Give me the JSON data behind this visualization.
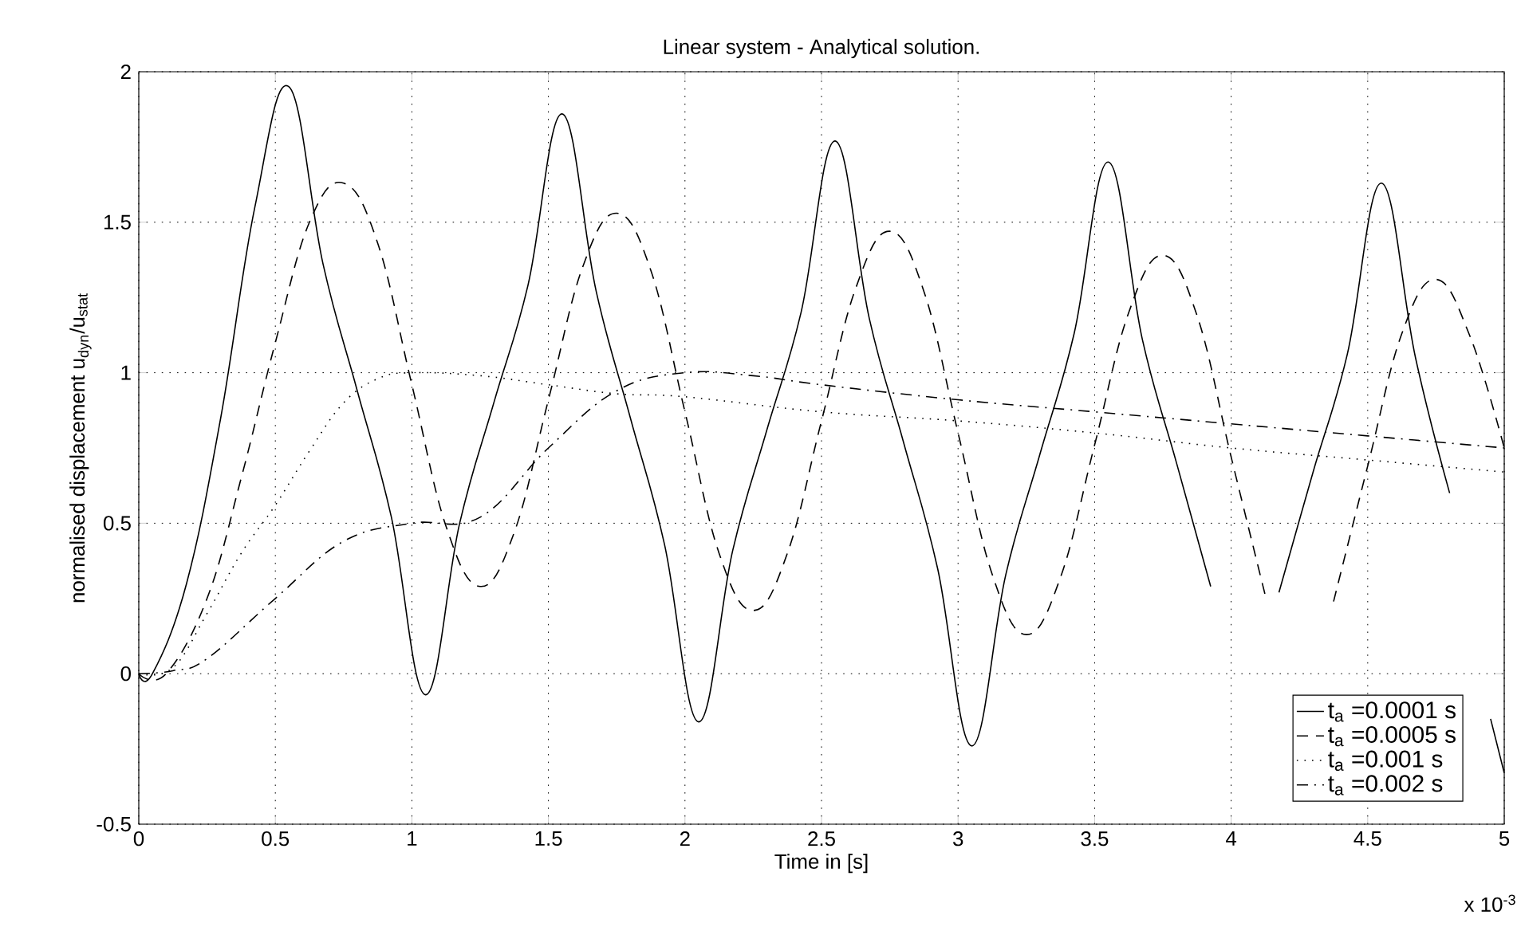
{
  "chart_data": {
    "type": "line",
    "title": "Linear system - Analytical solution.",
    "xlabel": "Time in [s]",
    "ylabel": "normalised displacement   u$_{dyn}$/u$_{stat}$",
    "annotations": [
      "x 10$^{-3}$"
    ],
    "xlim": [
      0,
      5
    ],
    "ylim": [
      -0.5,
      2
    ],
    "xticks": [
      0,
      0.5,
      1,
      1.5,
      2,
      2.5,
      3,
      3.5,
      4,
      4.5,
      5
    ],
    "yticks": [
      -0.5,
      0,
      0.5,
      1,
      1.5,
      2
    ],
    "grid": true,
    "legend": "bottom right",
    "series": [
      {
        "name": "t$_{a}$ =0.0001 s",
        "color": "#000000",
        "line_style": "solid",
        "x": [
          0,
          0.05,
          0.175,
          0.3,
          0.425,
          0.55,
          0.675,
          0.8,
          0.925,
          1.05,
          1.175,
          1.3,
          1.425,
          1.55,
          1.675,
          1.8,
          1.925,
          2.05,
          2.175,
          2.3,
          2.425,
          2.55,
          2.675,
          2.8,
          2.925,
          3.05,
          3.175,
          3.3,
          3.425,
          3.55,
          3.675,
          3.8,
          3.925,
          4.05,
          4.175,
          4.3,
          4.425,
          4.55,
          4.675,
          4.8,
          4.925,
          4.95,
          5.0
        ],
        "values": [
          0,
          0,
          0.3,
          0.85,
          1.55,
          1.95,
          1.36,
          0.94,
          0.52,
          -0.07,
          0.5,
          0.9,
          1.29,
          1.86,
          1.27,
          0.85,
          0.43,
          -0.16,
          0.41,
          0.81,
          1.2,
          1.77,
          1.18,
          0.77,
          0.35,
          -0.24,
          0.33,
          0.73,
          1.13,
          1.7,
          1.11,
          0.7,
          0.29,
          null,
          0.27,
          0.67,
          1.06,
          1.63,
          1.05,
          0.6,
          null,
          -0.15,
          -0.33
        ]
      },
      {
        "name": "t$_{a}$ =0.0005 s",
        "color": "#000000",
        "line_style": "dashed",
        "x": [
          0,
          0.1,
          0.25,
          0.375,
          0.5,
          0.625,
          0.75,
          0.875,
          1.0,
          1.125,
          1.25,
          1.375,
          1.5,
          1.625,
          1.75,
          1.875,
          2.0,
          2.125,
          2.25,
          2.375,
          2.5,
          2.625,
          2.75,
          2.875,
          3.0,
          3.125,
          3.25,
          3.375,
          3.5,
          3.625,
          3.75,
          3.875,
          4.0,
          4.125,
          4.25,
          4.375,
          4.5,
          4.625,
          4.75,
          4.875,
          5.0
        ],
        "values": [
          0,
          0,
          0.25,
          0.65,
          1.1,
          1.5,
          1.63,
          1.43,
          0.96,
          0.49,
          0.29,
          0.47,
          0.91,
          1.35,
          1.53,
          1.34,
          0.87,
          0.4,
          0.21,
          0.4,
          0.84,
          1.28,
          1.47,
          1.27,
          0.8,
          0.33,
          0.13,
          0.32,
          0.76,
          1.2,
          1.39,
          1.19,
          0.72,
          0.26,
          null,
          0.24,
          0.69,
          1.13,
          1.31,
          1.12,
          0.75
        ]
      },
      {
        "name": "t$_{a}$ =0.001 s",
        "color": "#000000",
        "line_style": "dotted",
        "x": [
          0,
          0.125,
          0.25,
          0.375,
          0.5,
          0.625,
          0.75,
          0.875,
          1.0,
          1.25,
          1.5,
          1.75,
          2.0,
          2.5,
          3.0,
          3.5,
          4.0,
          4.5,
          5.0
        ],
        "values": [
          0,
          0.02,
          0.2,
          0.4,
          0.56,
          0.74,
          0.9,
          0.98,
          1.0,
          0.99,
          0.96,
          0.93,
          0.92,
          0.87,
          0.84,
          0.8,
          0.75,
          0.71,
          0.67
        ]
      },
      {
        "name": "t$_{a}$ =0.002 s",
        "color": "#000000",
        "line_style": "dashdot",
        "x": [
          0,
          0.125,
          0.25,
          0.5,
          0.75,
          1.0,
          1.25,
          1.5,
          1.75,
          2.0,
          2.25,
          2.5,
          3.0,
          3.5,
          4.0,
          4.5,
          5.0
        ],
        "values": [
          0,
          0.01,
          0.05,
          0.25,
          0.44,
          0.5,
          0.52,
          0.75,
          0.94,
          1.0,
          0.99,
          0.96,
          0.91,
          0.87,
          0.83,
          0.79,
          0.75
        ]
      }
    ]
  }
}
